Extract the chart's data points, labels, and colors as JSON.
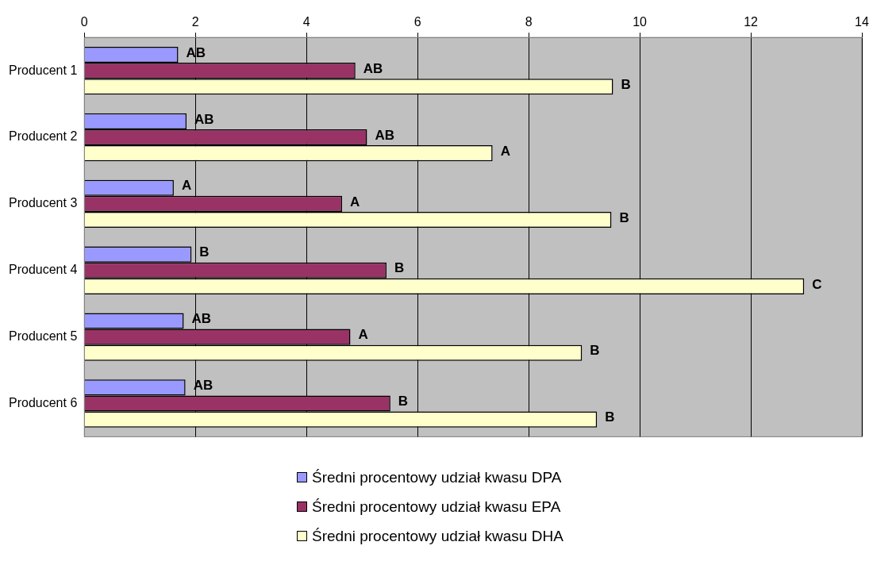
{
  "chart_data": {
    "type": "bar",
    "orientation": "horizontal",
    "categories": [
      "Producent 1",
      "Producent 2",
      "Producent 3",
      "Producent 4",
      "Producent 5",
      "Producent 6"
    ],
    "series": [
      {
        "name": "Średni procentowy udział kwasu DPA",
        "color": "#9999ff",
        "values": [
          1.69,
          1.84,
          1.61,
          1.93,
          1.79,
          1.82
        ],
        "value_labels": [
          "AB",
          "AB",
          "A",
          "B",
          "AB",
          "AB"
        ]
      },
      {
        "name": "Średni procentowy udział kwasu EPA",
        "color": "#993366",
        "values": [
          4.88,
          5.09,
          4.64,
          5.44,
          4.79,
          5.51
        ],
        "value_labels": [
          "AB",
          "AB",
          "A",
          "B",
          "A",
          "B"
        ]
      },
      {
        "name": "Średni procentowy udział kwasu DHA",
        "color": "#ffffcc",
        "values": [
          9.52,
          7.35,
          9.49,
          12.96,
          8.96,
          9.23
        ],
        "value_labels": [
          "B",
          "A",
          "B",
          "C",
          "B",
          "B"
        ]
      }
    ],
    "xlim": [
      0,
      14
    ],
    "xticks": [
      0,
      2,
      4,
      6,
      8,
      10,
      12,
      14
    ],
    "grid": "x",
    "legend": "bottom"
  }
}
